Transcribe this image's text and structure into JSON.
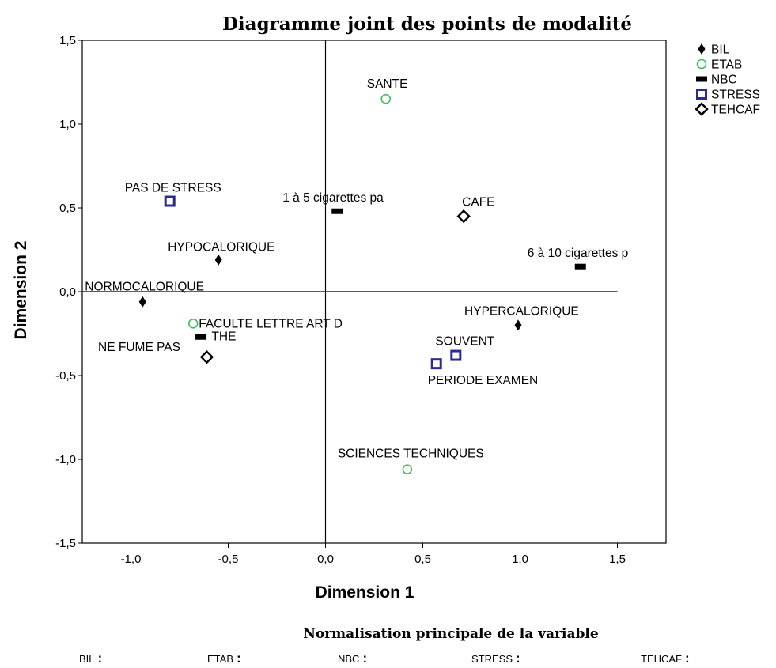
{
  "chart_data": {
    "type": "scatter",
    "title": "Diagramme joint des points de modalité",
    "xlabel": "Dimension 1",
    "ylabel": "Dimension 2",
    "xlim": [
      -1.25,
      1.75
    ],
    "ylim": [
      -1.5,
      1.5
    ],
    "xticks": [
      "-1,0",
      "-0,5",
      "0,0",
      "0,5",
      "1,0",
      "1,5"
    ],
    "xtick_values": [
      -1.0,
      -0.5,
      0.0,
      0.5,
      1.0,
      1.5
    ],
    "yticks": [
      "1,5",
      "1,0",
      "0,5",
      "0,0",
      "-0,5",
      "-1,0",
      "-1,5"
    ],
    "ytick_values": [
      1.5,
      1.0,
      0.5,
      0.0,
      -0.5,
      -1.0,
      -1.5
    ],
    "grid": false,
    "legend_position": "top-right",
    "reference_lines": {
      "x": 0.0,
      "y": 0.0,
      "x_extent": [
        -1.25,
        1.5
      ]
    },
    "series": [
      {
        "name": "BIL",
        "marker": "diamond-filled",
        "color": "#000000",
        "points": [
          {
            "label": "HYPOCALORIQUE",
            "x": -0.55,
            "y": 0.19
          },
          {
            "label": "NORMOCALORIQUE",
            "x": -0.94,
            "y": -0.06
          },
          {
            "label": "HYPERCALORIQUE",
            "x": 0.99,
            "y": -0.2
          }
        ]
      },
      {
        "name": "ETAB",
        "marker": "circle-open",
        "color": "#3fbf5f",
        "points": [
          {
            "label": "SANTE",
            "x": 0.31,
            "y": 1.15
          },
          {
            "label": "FACULTE LETTRE ART D",
            "x": -0.68,
            "y": -0.19
          },
          {
            "label": "SCIENCES TECHNIQUES",
            "x": 0.42,
            "y": -1.06
          }
        ]
      },
      {
        "name": "NBC",
        "marker": "rect-filled",
        "color": "#000000",
        "points": [
          {
            "label": "1 à 5 cigarettes pa",
            "x": 0.06,
            "y": 0.48
          },
          {
            "label": "6 à 10 cigarettes p",
            "x": 1.31,
            "y": 0.15
          },
          {
            "label": "NE FUME PAS",
            "x": -0.64,
            "y": -0.27
          }
        ]
      },
      {
        "name": "STRESS",
        "marker": "square-blue",
        "color": "#2b2b8f",
        "points": [
          {
            "label": "PAS DE STRESS",
            "x": -0.8,
            "y": 0.54
          },
          {
            "label": "SOUVENT",
            "x": 0.67,
            "y": -0.38
          },
          {
            "label": "PERIODE EXAMEN",
            "x": 0.57,
            "y": -0.43
          }
        ]
      },
      {
        "name": "TEHCAF",
        "marker": "diamond-open",
        "color": "#000000",
        "points": [
          {
            "label": "CAFE",
            "x": 0.71,
            "y": 0.45
          },
          {
            "label": "THE",
            "x": -0.61,
            "y": -0.39
          }
        ]
      }
    ],
    "footnote": "Normalisation principale de la variable",
    "footer_items": [
      "BIL",
      "ETAB",
      "NBC",
      "STRESS",
      "TEHCAF"
    ]
  }
}
